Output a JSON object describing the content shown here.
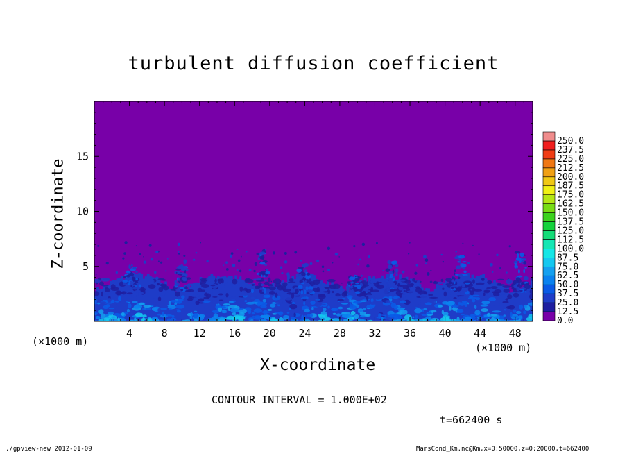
{
  "chart_data": {
    "type": "heatmap",
    "title": "turbulent diffusion coefficient",
    "xlabel": "X-coordinate",
    "ylabel": "Z-coordinate",
    "x_unit_left": "(×1000 m)",
    "x_unit_right": "(×1000 m)",
    "xlim": [
      0,
      50
    ],
    "ylim": [
      0,
      20
    ],
    "x_ticks": [
      4,
      8,
      12,
      16,
      20,
      24,
      28,
      32,
      36,
      40,
      44,
      48
    ],
    "y_ticks": [
      5,
      10,
      15
    ],
    "colorbar": {
      "levels": [
        "0.0",
        "12.5",
        "25.0",
        "37.5",
        "50.0",
        "62.5",
        "75.0",
        "87.5",
        "100.0",
        "112.5",
        "125.0",
        "137.5",
        "150.0",
        "162.5",
        "175.0",
        "187.5",
        "200.0",
        "212.5",
        "225.0",
        "237.5",
        "250.0"
      ],
      "colors": [
        "#7800a8",
        "#1e1ea0",
        "#1e3cc8",
        "#0a5ae6",
        "#0a82f0",
        "#14a0f0",
        "#14c8f0",
        "#14e6e6",
        "#14e6b4",
        "#14dc78",
        "#14d23c",
        "#3cd21e",
        "#78dc14",
        "#b4e614",
        "#f0f014",
        "#f0c814",
        "#f0a014",
        "#f07814",
        "#f03c14",
        "#f01e1e",
        "#f08c8c"
      ]
    },
    "field_background_color": "#7800a8",
    "boundary_layer_top_km": 3.2,
    "contour_interval": "CONTOUR INTERVAL = 1.000E+02",
    "time": "t=662400 s"
  },
  "footer": {
    "left": "./gpview-new  2012-01-09",
    "right": "MarsCond_Km.nc@Km,x=0:50000,z=0:20000,t=662400"
  }
}
